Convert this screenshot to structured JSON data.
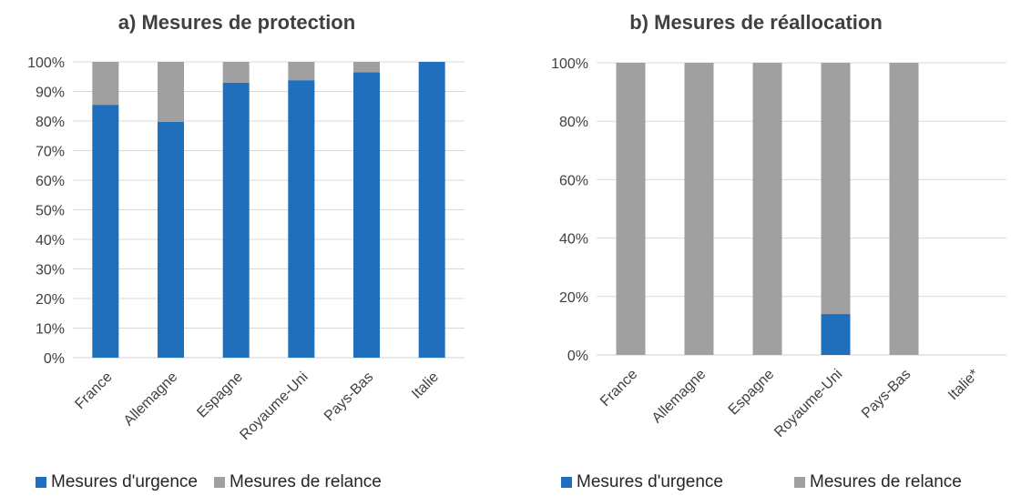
{
  "charts": {
    "a": {
      "title": "a) Mesures de protection",
      "legend": {
        "urgence": "Mesures d'urgence",
        "relance": "Mesures de relance"
      }
    },
    "b": {
      "title": "b) Mesures de réallocation",
      "legend": {
        "urgence": "Mesures d'urgence",
        "relance": "Mesures de relance"
      }
    }
  },
  "colors": {
    "urgence": "#1F6FBD",
    "relance": "#A0A0A0",
    "axis_text": "#404040"
  },
  "chart_data": [
    {
      "type": "bar",
      "stacked": true,
      "title": "a) Mesures de protection",
      "categories": [
        "France",
        "Allemagne",
        "Espagne",
        "Royaume-Uni",
        "Pays-Bas",
        "Italie"
      ],
      "series": [
        {
          "name": "Mesures d'urgence",
          "values": [
            85.5,
            79.7,
            93.0,
            93.8,
            96.5,
            100
          ]
        },
        {
          "name": "Mesures de relance",
          "values": [
            14.5,
            20.3,
            7.0,
            6.2,
            3.5,
            0
          ]
        }
      ],
      "ylim": [
        0,
        100
      ],
      "yticks": [
        "0%",
        "10%",
        "20%",
        "30%",
        "40%",
        "50%",
        "60%",
        "70%",
        "80%",
        "90%",
        "100%"
      ],
      "unit": "%",
      "gridlines": true,
      "legend_position": "bottom"
    },
    {
      "type": "bar",
      "stacked": true,
      "title": "b) Mesures de réallocation",
      "categories": [
        "France",
        "Allemagne",
        "Espagne",
        "Royaume-Uni",
        "Pays-Bas",
        "Italie*"
      ],
      "series": [
        {
          "name": "Mesures d'urgence",
          "values": [
            0,
            0,
            0,
            14,
            0,
            0
          ]
        },
        {
          "name": "Mesures de relance",
          "values": [
            100,
            100,
            100,
            86,
            100,
            0
          ]
        }
      ],
      "ylim": [
        0,
        100
      ],
      "yticks": [
        "0%",
        "20%",
        "40%",
        "60%",
        "80%",
        "100%"
      ],
      "unit": "%",
      "gridlines": true,
      "legend_position": "bottom"
    }
  ]
}
